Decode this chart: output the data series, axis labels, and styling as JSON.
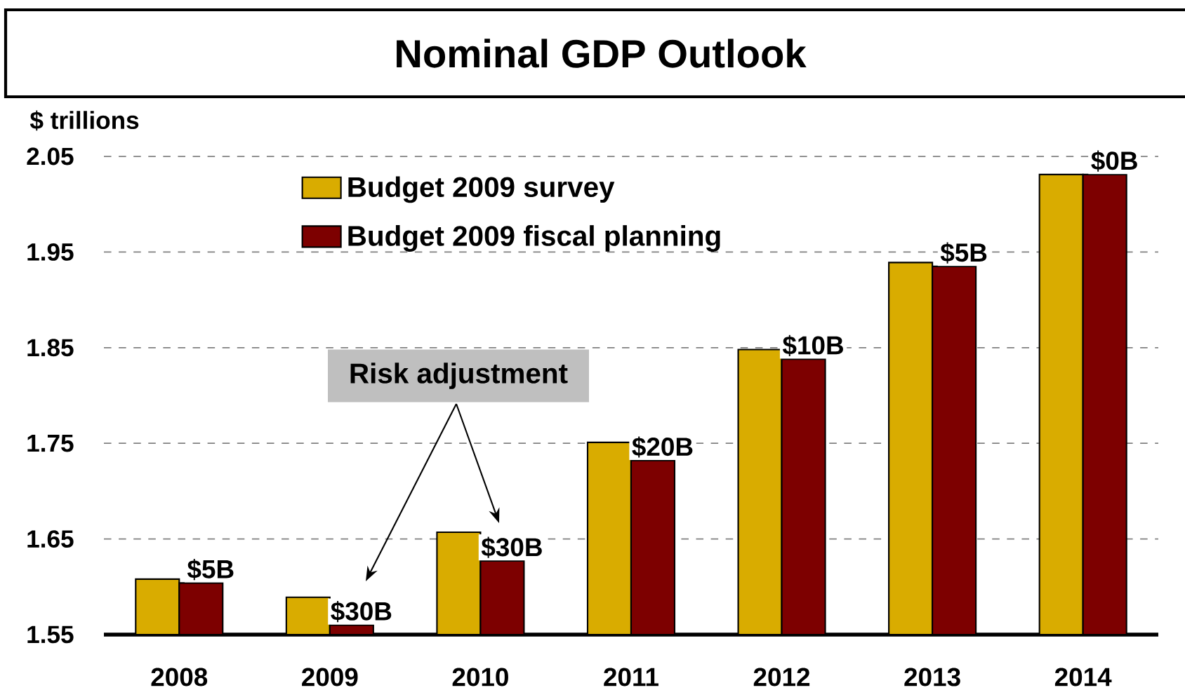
{
  "chart_data": {
    "type": "bar",
    "title": "Nominal GDP Outlook",
    "ylabel": "$ trillions",
    "categories": [
      "2008",
      "2009",
      "2010",
      "2011",
      "2012",
      "2013",
      "2014"
    ],
    "series": [
      {
        "name": "Budget 2009 survey",
        "color": "#d9ac00",
        "values": [
          1.608,
          1.589,
          1.657,
          1.751,
          1.848,
          1.939,
          2.031
        ]
      },
      {
        "name": "Budget 2009 fiscal planning",
        "color": "#7d0000",
        "values": [
          1.604,
          1.56,
          1.627,
          1.732,
          1.838,
          1.935,
          2.031
        ]
      }
    ],
    "ylim": [
      1.55,
      2.05
    ],
    "yticks": [
      1.55,
      1.65,
      1.75,
      1.85,
      1.95,
      2.05
    ],
    "grid": "y",
    "legend": "top left",
    "annotations": [
      "Risk adjustment",
      {
        "text": "$5B",
        "x": "2008",
        "y": 1.604
      },
      {
        "text": "$30B",
        "x": "2009",
        "y": 1.56
      },
      {
        "text": "$30B",
        "x": "2010",
        "y": 1.627
      },
      {
        "text": "$20B",
        "x": "2011",
        "y": 1.732
      },
      {
        "text": "$10B",
        "x": "2012",
        "y": 1.838
      },
      {
        "text": "$5B",
        "x": "2013",
        "y": 1.935
      },
      {
        "text": "$0B",
        "x": "2014",
        "y": 2.031
      }
    ]
  }
}
